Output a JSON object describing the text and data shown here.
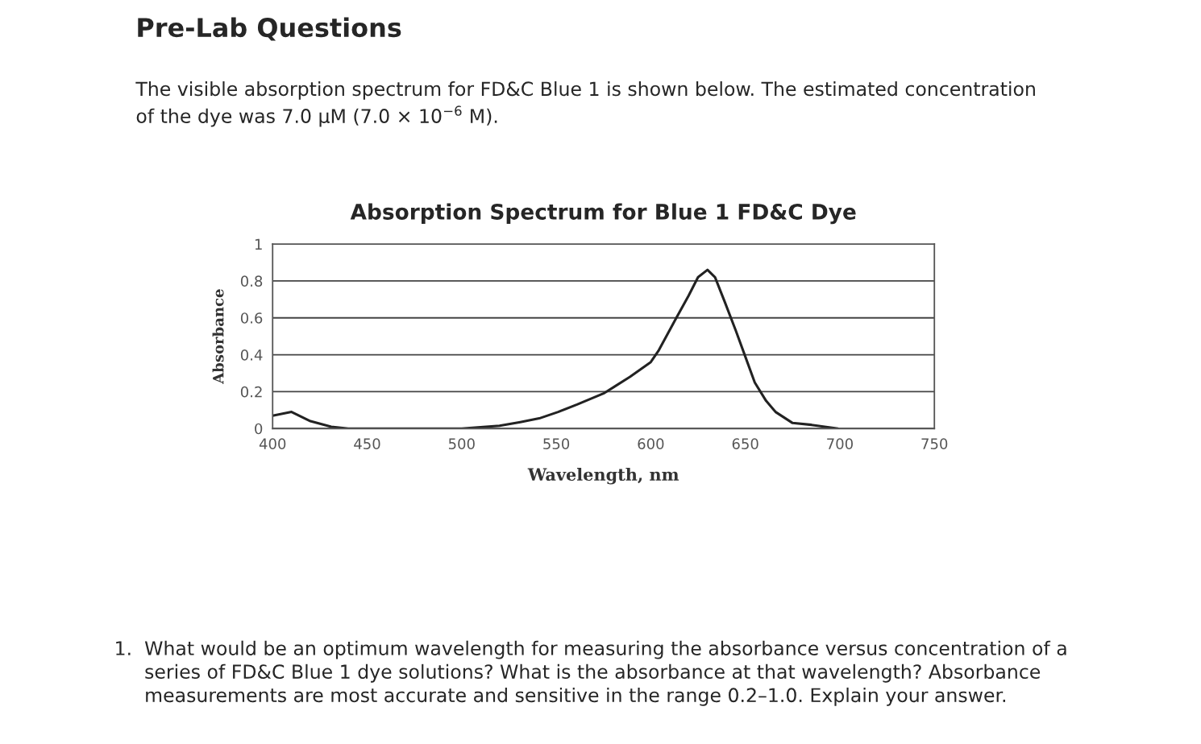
{
  "chart_data": {
    "type": "line",
    "title": "Absorption Spectrum for Blue 1 FD&C Dye",
    "xlabel": "Wavelength, nm",
    "ylabel": "Absorbance",
    "annotations": [
      "Pre-Lab Questions",
      "The visible absorption spectrum for FD&C Blue 1 is shown below. The estimated concentration\nof the dye was 7.0 µM (7.0 × 10$^{−6}$ M).",
      "1.  What would be an optimum wavelength for measuring the absorbance versus concentration of a\n     series of FD&C Blue 1 dye solutions? What is the absorbance at that wavelength? Absorbance\n     measurements are most accurate and sensitive in the range 0.2–1.0. Explain your answer."
    ],
    "series": [
      {
        "color": "#222222",
        "x": [
          400,
          410,
          420,
          431,
          440,
          450,
          470,
          479,
          500,
          520,
          531,
          541,
          551,
          561,
          575,
          589,
          600,
          604,
          613,
          620,
          625,
          630,
          634,
          639,
          645,
          650,
          655,
          661,
          666,
          675,
          685,
          699
        ],
        "values": [
          0.07,
          0.09,
          0.04,
          0.01,
          0,
          0,
          0,
          0,
          0,
          0.015,
          0.035,
          0.055,
          0.09,
          0.13,
          0.19,
          0.28,
          0.36,
          0.42,
          0.59,
          0.72,
          0.82,
          0.86,
          0.82,
          0.69,
          0.53,
          0.39,
          0.25,
          0.15,
          0.09,
          0.03,
          0.02,
          0
        ]
      }
    ],
    "xlim": [
      400,
      750
    ],
    "xticks": [
      400,
      450,
      500,
      550,
      600,
      650,
      700,
      750
    ],
    "ylim": [
      0,
      1
    ],
    "yticks": [
      0,
      0.2,
      0.4,
      0.6,
      0.8,
      1
    ],
    "grid": "y",
    "marker": "none",
    "line_style": "solid"
  }
}
